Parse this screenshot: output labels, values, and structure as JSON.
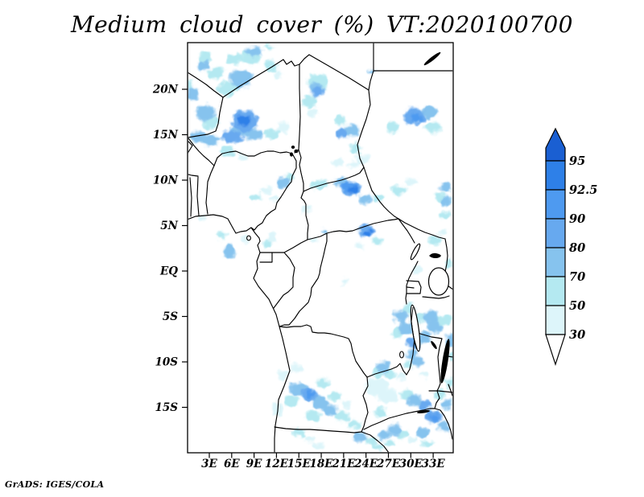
{
  "title": "Medium cloud cover (%) VT:2020100700",
  "credit": "GrADS: IGES/COLA",
  "axes": {
    "lat_ticks": [
      {
        "label": "20N",
        "lat": 20
      },
      {
        "label": "15N",
        "lat": 15
      },
      {
        "label": "10N",
        "lat": 10
      },
      {
        "label": "5N",
        "lat": 5
      },
      {
        "label": "EQ",
        "lat": 0
      },
      {
        "label": "5S",
        "lat": -5
      },
      {
        "label": "10S",
        "lat": -10
      },
      {
        "label": "15S",
        "lat": -15
      }
    ],
    "lon_ticks": [
      {
        "label": "3E",
        "lon": 3
      },
      {
        "label": "6E",
        "lon": 6
      },
      {
        "label": "9E",
        "lon": 9
      },
      {
        "label": "12E",
        "lon": 12
      },
      {
        "label": "15E",
        "lon": 15
      },
      {
        "label": "18E",
        "lon": 18
      },
      {
        "label": "21E",
        "lon": 21
      },
      {
        "label": "24E",
        "lon": 24
      },
      {
        "label": "27E",
        "lon": 27
      },
      {
        "label": "30E",
        "lon": 30
      },
      {
        "label": "33E",
        "lon": 33
      }
    ]
  },
  "colorbar": {
    "boundary_labels": [
      "95",
      "92.5",
      "90",
      "80",
      "70",
      "50",
      "30"
    ],
    "segment_colors": [
      "#2e80e8",
      "#4e9af0",
      "#67a9ef",
      "#86c3ee",
      "#b4e9f1",
      "#ddf5fa"
    ],
    "over_color": "#1a5fd2",
    "under_color": "#ffffff"
  },
  "chart_data": {
    "type": "heatmap",
    "title": "Medium cloud cover (%) VT:2020100700",
    "variable": "Medium cloud cover",
    "units": "%",
    "valid_time_label": "VT:2020100700",
    "lon_range_deg_east": [
      0,
      35.7
    ],
    "lat_range_deg_north": [
      -20,
      25.1
    ],
    "shade_levels_percent": [
      30,
      50,
      70,
      80,
      90,
      92.5,
      95
    ],
    "level_colors": {
      "30": "#ddf5fa",
      "50": "#b4e9f1",
      "70": "#86c3ee",
      "80": "#67a9ef",
      "90": "#4e9af0",
      "92.5": "#2e80e8",
      "95": "#1a5fd2"
    },
    "grid": false,
    "legend_position": "right",
    "cloud_cells": [
      [
        7.3,
        21.2,
        3.0,
        2.1,
        70
      ],
      [
        3.9,
        21.8,
        2.1,
        1.4,
        50
      ],
      [
        5.5,
        20.1,
        2.6,
        1.6,
        50
      ],
      [
        8.5,
        23.6,
        2.6,
        1.6,
        50
      ],
      [
        9.0,
        24.2,
        2.1,
        1.2,
        70
      ],
      [
        6.4,
        23.3,
        1.9,
        1.2,
        50
      ],
      [
        2.4,
        23.4,
        1.5,
        1.4,
        50
      ],
      [
        2.2,
        22.6,
        1.3,
        1.1,
        70
      ],
      [
        11.0,
        24.6,
        1.3,
        0.6,
        50
      ],
      [
        11.3,
        22.6,
        1.7,
        1.3,
        50
      ],
      [
        12.2,
        21.6,
        1.3,
        0.9,
        30
      ],
      [
        0.8,
        19.5,
        1.5,
        1.4,
        70
      ],
      [
        0.3,
        20.5,
        1.1,
        1.1,
        50
      ],
      [
        2.5,
        17.4,
        2.6,
        1.8,
        70
      ],
      [
        3.2,
        16.3,
        2.1,
        1.4,
        50
      ],
      [
        7.8,
        16.5,
        3.4,
        2.5,
        80
      ],
      [
        7.7,
        16.6,
        1.7,
        1.2,
        92.5
      ],
      [
        6.8,
        15.4,
        2.1,
        1.2,
        70
      ],
      [
        1.4,
        14.8,
        2.1,
        1.1,
        70
      ],
      [
        3.2,
        14.4,
        2.6,
        1.1,
        70
      ],
      [
        6.0,
        14.8,
        3.0,
        1.2,
        80
      ],
      [
        8.9,
        15.0,
        2.6,
        1.2,
        70
      ],
      [
        11.4,
        15.1,
        2.1,
        1.1,
        50
      ],
      [
        12.9,
        15.8,
        1.7,
        1.1,
        30
      ],
      [
        5.5,
        13.2,
        1.9,
        1.1,
        50
      ],
      [
        7.5,
        12.6,
        1.7,
        0.9,
        30
      ],
      [
        16.4,
        18.7,
        2.1,
        1.4,
        50
      ],
      [
        16.9,
        17.4,
        1.5,
        0.9,
        30
      ],
      [
        17.5,
        20.8,
        2.6,
        1.8,
        50
      ],
      [
        17.3,
        20.2,
        1.7,
        1.2,
        70
      ],
      [
        17.5,
        19.7,
        1.4,
        1.1,
        80
      ],
      [
        20.5,
        16.6,
        1.5,
        1.1,
        50
      ],
      [
        22.0,
        15.5,
        2.1,
        1.4,
        70
      ],
      [
        20.7,
        15.2,
        1.5,
        1.1,
        80
      ],
      [
        22.6,
        13.5,
        1.7,
        1.2,
        50
      ],
      [
        23.5,
        12.3,
        1.7,
        1.1,
        30
      ],
      [
        30.5,
        17.0,
        2.8,
        1.9,
        80
      ],
      [
        30.7,
        16.8,
        1.5,
        1.1,
        90
      ],
      [
        32.5,
        17.5,
        2.1,
        1.4,
        70
      ],
      [
        33.0,
        15.8,
        2.1,
        1.2,
        50
      ],
      [
        27.5,
        15.8,
        1.7,
        1.2,
        50
      ],
      [
        24.8,
        22.0,
        1.1,
        0.5,
        70
      ],
      [
        12.9,
        9.8,
        1.9,
        1.2,
        70
      ],
      [
        13.9,
        10.4,
        1.3,
        0.9,
        50
      ],
      [
        17.8,
        9.5,
        2.1,
        1.1,
        50
      ],
      [
        22.1,
        9.0,
        2.6,
        1.4,
        80
      ],
      [
        21.6,
        9.3,
        1.5,
        1.1,
        90
      ],
      [
        22.3,
        8.9,
        1.3,
        0.9,
        92.5
      ],
      [
        20.7,
        9.8,
        1.7,
        1.1,
        70
      ],
      [
        23.9,
        7.9,
        1.7,
        1.1,
        70
      ],
      [
        25.7,
        8.1,
        1.5,
        0.9,
        50
      ],
      [
        28.4,
        8.9,
        2.1,
        1.1,
        50
      ],
      [
        30.1,
        9.8,
        1.7,
        0.9,
        30
      ],
      [
        34.6,
        9.2,
        1.7,
        1.2,
        70
      ],
      [
        33.9,
        8.1,
        1.5,
        0.9,
        50
      ],
      [
        34.8,
        7.7,
        1.3,
        1.1,
        70
      ],
      [
        34.6,
        6.1,
        1.3,
        0.9,
        50
      ],
      [
        20.2,
        11.9,
        1.7,
        0.9,
        30
      ],
      [
        22.3,
        11.7,
        1.5,
        0.7,
        30
      ],
      [
        10.5,
        8.9,
        1.7,
        0.9,
        30
      ],
      [
        9.2,
        8.1,
        1.5,
        0.9,
        50
      ],
      [
        11.8,
        7.9,
        1.3,
        0.7,
        30
      ],
      [
        24.0,
        4.4,
        2.0,
        1.5,
        80
      ],
      [
        24.2,
        4.2,
        1.2,
        0.9,
        92.5
      ],
      [
        25.5,
        3.3,
        1.3,
        0.9,
        50
      ],
      [
        23.2,
        2.8,
        1.1,
        0.7,
        30
      ],
      [
        4.6,
        3.9,
        1.5,
        0.9,
        50
      ],
      [
        5.7,
        2.1,
        1.5,
        1.6,
        70
      ],
      [
        2.1,
        5.9,
        1.1,
        0.7,
        30
      ],
      [
        7.8,
        3.5,
        1.3,
        0.7,
        30
      ],
      [
        11.4,
        3.7,
        1.1,
        1.4,
        30
      ],
      [
        10.7,
        3.0,
        0.9,
        0.9,
        50
      ],
      [
        17.1,
        3.4,
        1.1,
        0.7,
        30
      ],
      [
        18.4,
        4.5,
        0.9,
        0.5,
        70
      ],
      [
        21.2,
        -1.2,
        1.1,
        0.7,
        30
      ],
      [
        16.1,
        6.8,
        1.3,
        0.7,
        30
      ],
      [
        33.3,
        3.4,
        1.7,
        1.1,
        50
      ],
      [
        34.3,
        4.3,
        1.3,
        0.7,
        30
      ],
      [
        30.9,
        0.1,
        1.3,
        0.7,
        30
      ],
      [
        35.2,
        0.8,
        1.1,
        1.1,
        50
      ],
      [
        28.6,
        -5.0,
        1.9,
        1.4,
        70
      ],
      [
        29.3,
        -6.2,
        1.9,
        1.4,
        70
      ],
      [
        28.1,
        -6.8,
        1.7,
        1.1,
        50
      ],
      [
        29.8,
        -4.2,
        1.5,
        1.1,
        50
      ],
      [
        31.2,
        -5.2,
        1.7,
        1.1,
        50
      ],
      [
        32.6,
        -5.0,
        1.9,
        1.3,
        70
      ],
      [
        33.2,
        -6.2,
        1.9,
        1.4,
        70
      ],
      [
        33.8,
        -5.5,
        1.5,
        1.1,
        50
      ],
      [
        31.8,
        -7.3,
        1.7,
        1.2,
        70
      ],
      [
        30.4,
        -7.9,
        1.7,
        1.2,
        80
      ],
      [
        30.2,
        -9.2,
        1.7,
        1.1,
        70
      ],
      [
        31.0,
        -10.0,
        1.5,
        0.9,
        70
      ],
      [
        29.6,
        -10.3,
        1.3,
        0.7,
        50
      ],
      [
        35.2,
        -7.6,
        1.3,
        1.4,
        70
      ],
      [
        34.9,
        -5.4,
        1.1,
        1.1,
        50
      ],
      [
        35.5,
        -9.4,
        0.9,
        1.1,
        50
      ],
      [
        26.4,
        -10.6,
        1.9,
        1.2,
        70
      ],
      [
        25.6,
        -11.2,
        1.5,
        0.9,
        50
      ],
      [
        27.2,
        -11.3,
        1.3,
        0.9,
        50
      ],
      [
        28.7,
        -11.6,
        1.5,
        0.9,
        30
      ],
      [
        31.9,
        -11.4,
        1.3,
        0.7,
        30
      ],
      [
        15.1,
        -13.0,
        2.6,
        1.6,
        70
      ],
      [
        16.4,
        -13.6,
        2.1,
        1.4,
        80
      ],
      [
        16.6,
        -13.5,
        1.1,
        0.7,
        90
      ],
      [
        17.9,
        -14.5,
        2.1,
        1.4,
        70
      ],
      [
        19.1,
        -15.3,
        1.9,
        1.2,
        70
      ],
      [
        13.9,
        -14.3,
        1.9,
        1.2,
        50
      ],
      [
        16.9,
        -16.0,
        2.1,
        1.1,
        50
      ],
      [
        20.7,
        -16.0,
        2.1,
        1.2,
        50
      ],
      [
        12.9,
        -11.4,
        1.7,
        1.1,
        30
      ],
      [
        14.6,
        -10.7,
        1.7,
        0.9,
        30
      ],
      [
        12.1,
        -15.2,
        1.3,
        1.4,
        30
      ],
      [
        18.2,
        -12.3,
        1.7,
        1.1,
        50
      ],
      [
        19.9,
        -13.8,
        1.7,
        1.1,
        50
      ],
      [
        21.4,
        -14.7,
        1.5,
        0.9,
        30
      ],
      [
        22.3,
        -16.9,
        1.7,
        1.1,
        50
      ],
      [
        15.0,
        -17.8,
        1.7,
        0.9,
        50
      ],
      [
        16.4,
        -18.5,
        1.7,
        0.9,
        30
      ],
      [
        17.5,
        -19.3,
        1.7,
        0.7,
        30
      ],
      [
        25.5,
        -12.8,
        3.0,
        2.1,
        30
      ],
      [
        27.0,
        -13.8,
        2.6,
        1.7,
        30
      ],
      [
        29.5,
        -13.6,
        1.7,
        1.1,
        50
      ],
      [
        30.5,
        -14.2,
        1.9,
        1.3,
        70
      ],
      [
        31.8,
        -14.8,
        1.7,
        1.1,
        80
      ],
      [
        26.0,
        -15.6,
        1.7,
        1.1,
        50
      ],
      [
        23.2,
        -18.3,
        1.9,
        1.1,
        70
      ],
      [
        24.7,
        -18.7,
        1.7,
        0.9,
        50
      ],
      [
        26.4,
        -18.1,
        1.5,
        0.9,
        70
      ],
      [
        27.3,
        -19.0,
        1.3,
        0.7,
        50
      ],
      [
        25.5,
        -19.4,
        1.7,
        0.7,
        50
      ],
      [
        27.8,
        -17.5,
        1.9,
        1.2,
        70
      ],
      [
        28.9,
        -18.0,
        1.5,
        0.9,
        50
      ],
      [
        33.0,
        -16.0,
        2.1,
        1.4,
        80
      ],
      [
        33.2,
        -16.1,
        1.1,
        0.7,
        90
      ],
      [
        34.4,
        -17.1,
        1.7,
        1.1,
        70
      ],
      [
        31.6,
        -17.8,
        1.7,
        1.1,
        70
      ],
      [
        34.9,
        -14.7,
        1.5,
        1.1,
        70
      ],
      [
        33.9,
        -13.6,
        1.5,
        0.9,
        50
      ],
      [
        35.2,
        -12.3,
        1.1,
        1.1,
        50
      ],
      [
        32.2,
        -19.0,
        1.5,
        0.7,
        50
      ],
      [
        30.3,
        -18.5,
        1.3,
        0.7,
        30
      ]
    ]
  }
}
